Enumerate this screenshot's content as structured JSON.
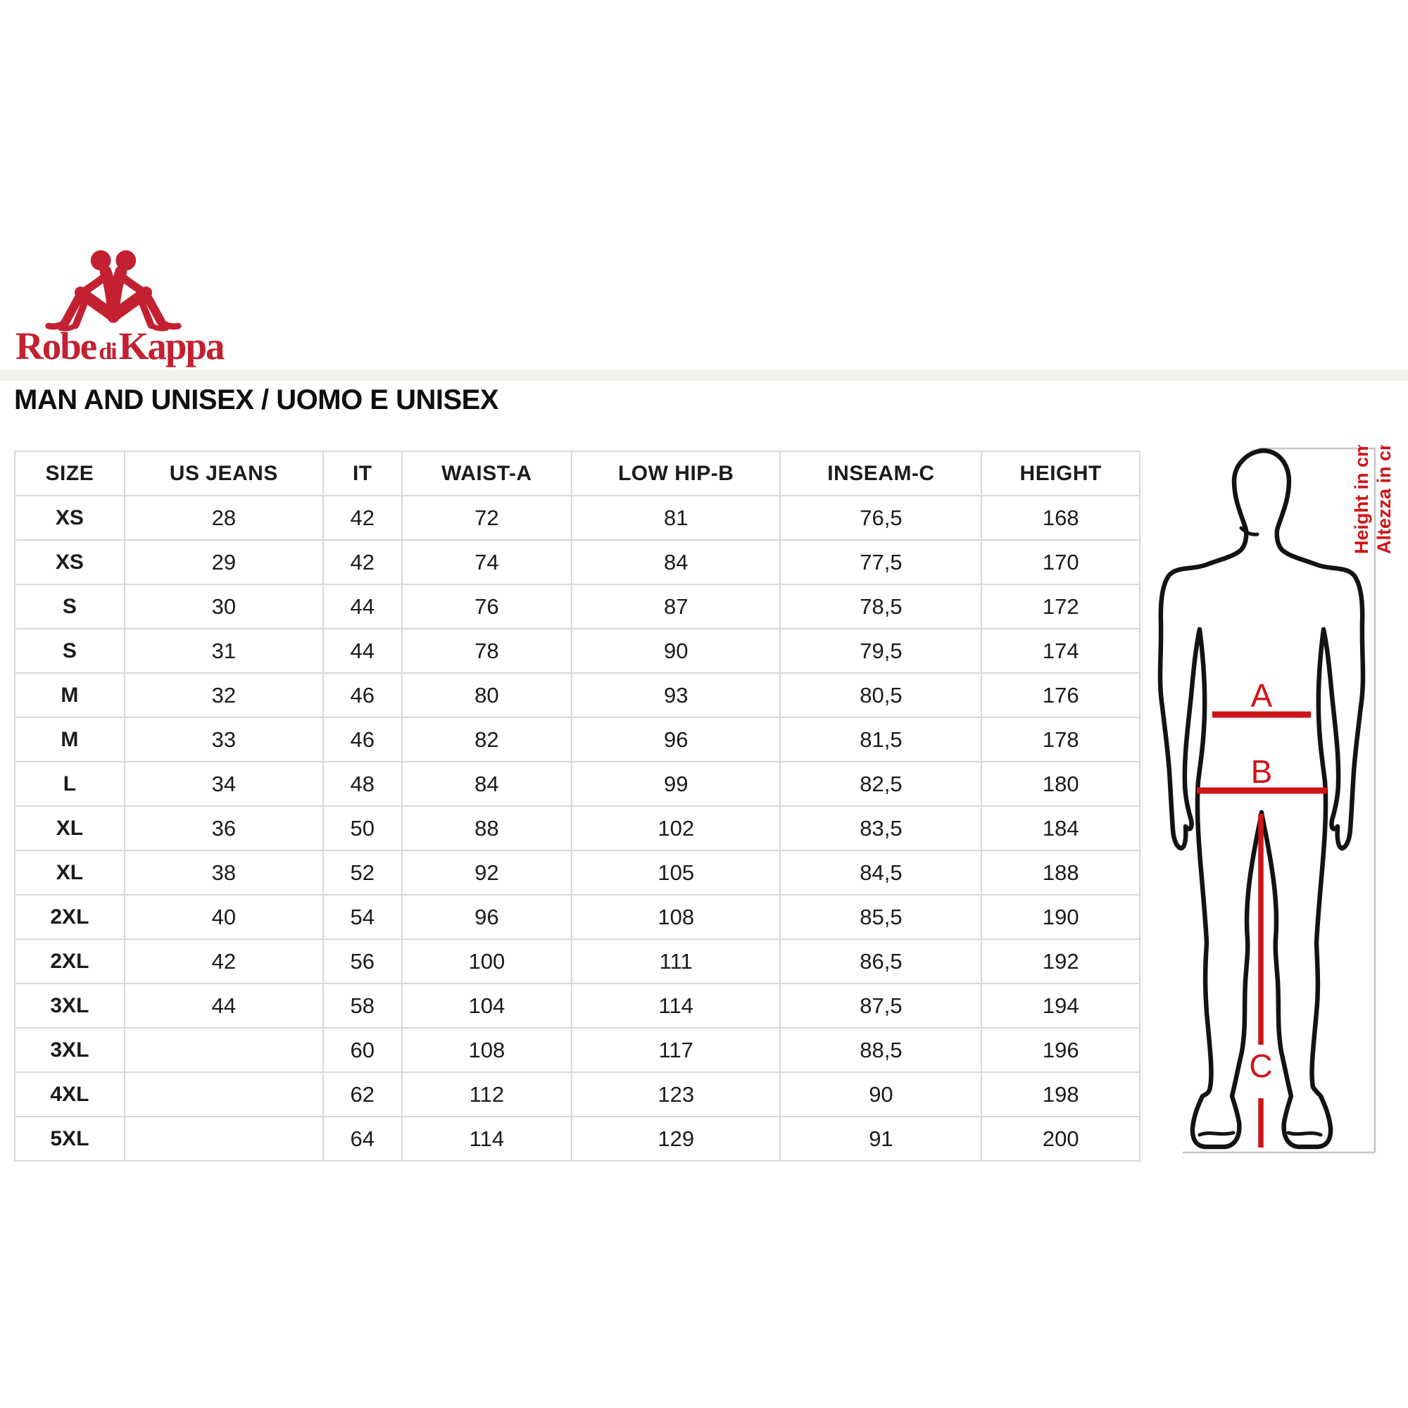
{
  "brand": {
    "name": "Robe di Kappa",
    "word_robe": "Robe",
    "word_di": "di",
    "word_kappa": "Kappa"
  },
  "page_title": "MAN AND UNISEX / UOMO E UNISEX",
  "size_table": {
    "columns": [
      "SIZE",
      "US JEANS",
      "IT",
      "WAIST-A",
      "LOW HIP-B",
      "INSEAM-C",
      "HEIGHT"
    ],
    "rows": [
      [
        "XS",
        "28",
        "42",
        "72",
        "81",
        "76,5",
        "168"
      ],
      [
        "XS",
        "29",
        "42",
        "74",
        "84",
        "77,5",
        "170"
      ],
      [
        "S",
        "30",
        "44",
        "76",
        "87",
        "78,5",
        "172"
      ],
      [
        "S",
        "31",
        "44",
        "78",
        "90",
        "79,5",
        "174"
      ],
      [
        "M",
        "32",
        "46",
        "80",
        "93",
        "80,5",
        "176"
      ],
      [
        "M",
        "33",
        "46",
        "82",
        "96",
        "81,5",
        "178"
      ],
      [
        "L",
        "34",
        "48",
        "84",
        "99",
        "82,5",
        "180"
      ],
      [
        "XL",
        "36",
        "50",
        "88",
        "102",
        "83,5",
        "184"
      ],
      [
        "XL",
        "38",
        "52",
        "92",
        "105",
        "84,5",
        "188"
      ],
      [
        "2XL",
        "40",
        "54",
        "96",
        "108",
        "85,5",
        "190"
      ],
      [
        "2XL",
        "42",
        "56",
        "100",
        "111",
        "86,5",
        "192"
      ],
      [
        "3XL",
        "44",
        "58",
        "104",
        "114",
        "87,5",
        "194"
      ],
      [
        "3XL",
        "",
        "60",
        "108",
        "117",
        "88,5",
        "196"
      ],
      [
        "4XL",
        "",
        "62",
        "112",
        "123",
        "90",
        "198"
      ],
      [
        "5XL",
        "",
        "64",
        "114",
        "129",
        "91",
        "200"
      ]
    ]
  },
  "measurement_figure": {
    "label_a": "A",
    "label_b": "B",
    "label_c": "C",
    "note_en": "Height in cm",
    "note_it": "Altezza in cm"
  },
  "colors": {
    "brand_red": "#c32031",
    "annotation_red": "#cf1518"
  }
}
